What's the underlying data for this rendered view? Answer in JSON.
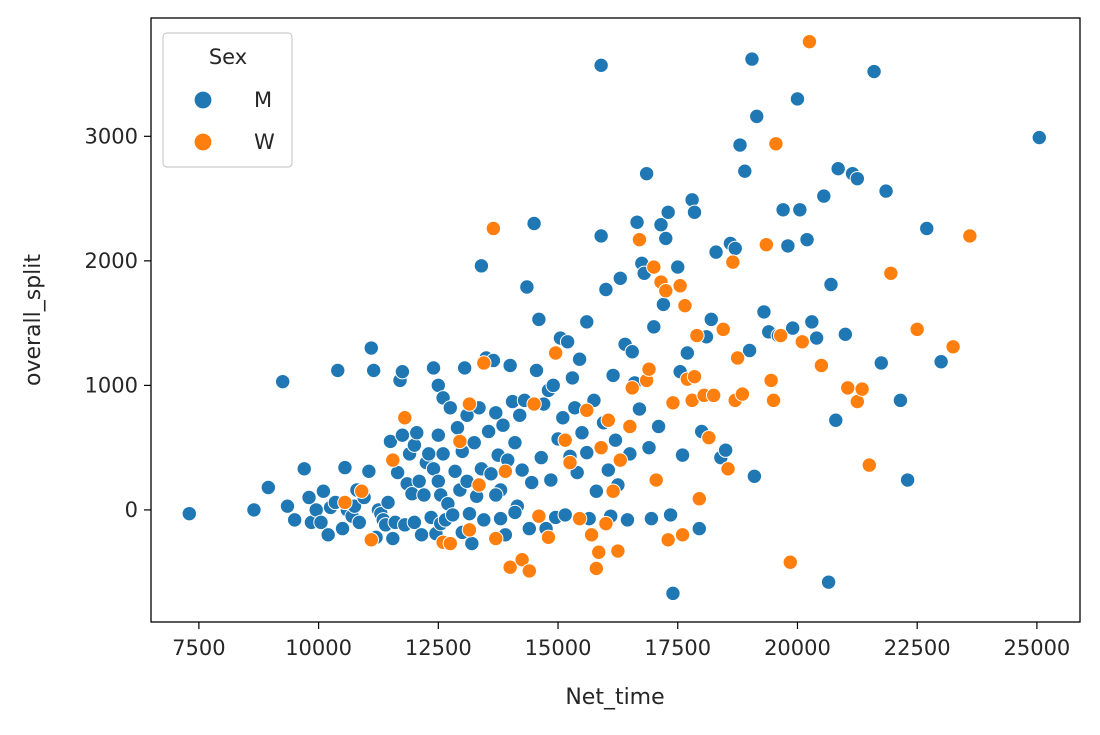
{
  "chart_data": {
    "type": "scatter",
    "title": "",
    "xlabel": "Net_time",
    "ylabel": "overall_split",
    "xlim": [
      6500,
      25900
    ],
    "ylim": [
      -900,
      3950
    ],
    "xticks": [
      "7500",
      "10000",
      "12500",
      "15000",
      "17500",
      "20000",
      "22500",
      "25000"
    ],
    "xtick_values": [
      7500,
      10000,
      12500,
      15000,
      17500,
      20000,
      22500,
      25000
    ],
    "yticks": [
      "0",
      "1000",
      "2000",
      "3000"
    ],
    "ytick_values": [
      0,
      1000,
      2000,
      3000
    ],
    "grid": false,
    "legend": {
      "title": "Sex",
      "position": "top-left"
    },
    "colors": {
      "M": "#1f77b4",
      "W": "#ff7f0e"
    },
    "series": [
      {
        "name": "M",
        "points": [
          [
            7300,
            -30
          ],
          [
            8650,
            0
          ],
          [
            8950,
            180
          ],
          [
            9250,
            1030
          ],
          [
            9350,
            30
          ],
          [
            9500,
            -80
          ],
          [
            9700,
            330
          ],
          [
            9800,
            100
          ],
          [
            9850,
            -100
          ],
          [
            9950,
            0
          ],
          [
            10050,
            -100
          ],
          [
            10100,
            150
          ],
          [
            10200,
            -200
          ],
          [
            10250,
            20
          ],
          [
            10350,
            60
          ],
          [
            10400,
            1120
          ],
          [
            10500,
            -150
          ],
          [
            10550,
            340
          ],
          [
            10600,
            0
          ],
          [
            10700,
            -50
          ],
          [
            10750,
            30
          ],
          [
            10800,
            160
          ],
          [
            10850,
            -100
          ],
          [
            10950,
            100
          ],
          [
            11050,
            310
          ],
          [
            11100,
            1300
          ],
          [
            11150,
            1120
          ],
          [
            11200,
            -220
          ],
          [
            11250,
            0
          ],
          [
            11300,
            -30
          ],
          [
            11350,
            -80
          ],
          [
            11400,
            -120
          ],
          [
            11450,
            60
          ],
          [
            11500,
            550
          ],
          [
            11550,
            -230
          ],
          [
            11600,
            -100
          ],
          [
            11650,
            300
          ],
          [
            11700,
            1040
          ],
          [
            11750,
            1110
          ],
          [
            11750,
            600
          ],
          [
            11800,
            -120
          ],
          [
            11850,
            210
          ],
          [
            11900,
            450
          ],
          [
            11950,
            130
          ],
          [
            12000,
            520
          ],
          [
            12000,
            -100
          ],
          [
            12050,
            620
          ],
          [
            12100,
            230
          ],
          [
            12150,
            -200
          ],
          [
            12200,
            120
          ],
          [
            12250,
            380
          ],
          [
            12300,
            450
          ],
          [
            12350,
            -60
          ],
          [
            12400,
            1140
          ],
          [
            12400,
            330
          ],
          [
            12450,
            -190
          ],
          [
            12500,
            1000
          ],
          [
            12500,
            600
          ],
          [
            12500,
            230
          ],
          [
            12550,
            120
          ],
          [
            12550,
            -110
          ],
          [
            12600,
            900
          ],
          [
            12600,
            450
          ],
          [
            12650,
            -80
          ],
          [
            12700,
            50
          ],
          [
            12750,
            820
          ],
          [
            12800,
            -40
          ],
          [
            12850,
            310
          ],
          [
            12900,
            660
          ],
          [
            12950,
            160
          ],
          [
            13000,
            470
          ],
          [
            13000,
            -180
          ],
          [
            13050,
            1140
          ],
          [
            13100,
            760
          ],
          [
            13100,
            230
          ],
          [
            13150,
            -30
          ],
          [
            13200,
            -270
          ],
          [
            13250,
            540
          ],
          [
            13300,
            110
          ],
          [
            13350,
            820
          ],
          [
            13400,
            1960
          ],
          [
            13400,
            330
          ],
          [
            13450,
            -80
          ],
          [
            13500,
            1220
          ],
          [
            13550,
            630
          ],
          [
            13600,
            290
          ],
          [
            13650,
            1200
          ],
          [
            13700,
            780
          ],
          [
            13750,
            440
          ],
          [
            13800,
            -70
          ],
          [
            13800,
            160
          ],
          [
            13850,
            680
          ],
          [
            13900,
            -200
          ],
          [
            13950,
            400
          ],
          [
            14000,
            1160
          ],
          [
            14050,
            870
          ],
          [
            14100,
            540
          ],
          [
            14150,
            30
          ],
          [
            14200,
            760
          ],
          [
            14250,
            320
          ],
          [
            14300,
            880
          ],
          [
            14350,
            1790
          ],
          [
            14400,
            -150
          ],
          [
            14450,
            220
          ],
          [
            14500,
            2300
          ],
          [
            14550,
            1120
          ],
          [
            14600,
            1530
          ],
          [
            14650,
            420
          ],
          [
            14700,
            850
          ],
          [
            14750,
            -150
          ],
          [
            14800,
            960
          ],
          [
            14850,
            240
          ],
          [
            14900,
            1000
          ],
          [
            14950,
            -60
          ],
          [
            15000,
            570
          ],
          [
            15050,
            1380
          ],
          [
            15100,
            740
          ],
          [
            15150,
            -40
          ],
          [
            15200,
            1350
          ],
          [
            15250,
            430
          ],
          [
            15300,
            1060
          ],
          [
            15350,
            820
          ],
          [
            15400,
            300
          ],
          [
            15450,
            1210
          ],
          [
            15500,
            620
          ],
          [
            15600,
            1510
          ],
          [
            15650,
            -70
          ],
          [
            15750,
            880
          ],
          [
            15800,
            150
          ],
          [
            15900,
            3570
          ],
          [
            15900,
            2200
          ],
          [
            15950,
            700
          ],
          [
            16000,
            1770
          ],
          [
            16050,
            320
          ],
          [
            16100,
            -50
          ],
          [
            16150,
            1080
          ],
          [
            16200,
            560
          ],
          [
            16250,
            200
          ],
          [
            16300,
            1860
          ],
          [
            16400,
            1330
          ],
          [
            16450,
            -80
          ],
          [
            16500,
            450
          ],
          [
            16550,
            1270
          ],
          [
            16600,
            1020
          ],
          [
            16650,
            2310
          ],
          [
            16700,
            810
          ],
          [
            16750,
            1980
          ],
          [
            16800,
            1900
          ],
          [
            16850,
            2700
          ],
          [
            16900,
            500
          ],
          [
            16950,
            -70
          ],
          [
            17000,
            1470
          ],
          [
            17100,
            670
          ],
          [
            17150,
            2290
          ],
          [
            17200,
            1650
          ],
          [
            17250,
            2180
          ],
          [
            17300,
            2390
          ],
          [
            17350,
            -40
          ],
          [
            17400,
            -670
          ],
          [
            17500,
            1950
          ],
          [
            17550,
            1110
          ],
          [
            17600,
            440
          ],
          [
            17700,
            1260
          ],
          [
            17800,
            2490
          ],
          [
            17850,
            2390
          ],
          [
            17950,
            -150
          ],
          [
            18000,
            630
          ],
          [
            18100,
            1390
          ],
          [
            18200,
            1530
          ],
          [
            18300,
            2070
          ],
          [
            18400,
            420
          ],
          [
            18500,
            480
          ],
          [
            18600,
            2140
          ],
          [
            18700,
            2100
          ],
          [
            18800,
            2930
          ],
          [
            18900,
            2720
          ],
          [
            19000,
            1280
          ],
          [
            19050,
            3620
          ],
          [
            19100,
            270
          ],
          [
            19150,
            3160
          ],
          [
            19300,
            1590
          ],
          [
            19400,
            1430
          ],
          [
            19600,
            1400
          ],
          [
            19700,
            2410
          ],
          [
            19800,
            2120
          ],
          [
            19900,
            1460
          ],
          [
            20000,
            3300
          ],
          [
            20050,
            2410
          ],
          [
            20200,
            2170
          ],
          [
            20300,
            1510
          ],
          [
            20400,
            1380
          ],
          [
            20550,
            2520
          ],
          [
            20650,
            -580
          ],
          [
            20700,
            1810
          ],
          [
            20800,
            720
          ],
          [
            20850,
            2740
          ],
          [
            21000,
            1410
          ],
          [
            21150,
            2700
          ],
          [
            21600,
            3520
          ],
          [
            21750,
            1180
          ],
          [
            21850,
            2560
          ],
          [
            22150,
            880
          ],
          [
            22300,
            240
          ],
          [
            22700,
            2260
          ],
          [
            23000,
            1190
          ],
          [
            25050,
            2990
          ],
          [
            21250,
            2660
          ],
          [
            13700,
            120
          ],
          [
            14100,
            -20
          ],
          [
            15600,
            460
          ]
        ]
      },
      {
        "name": "W",
        "points": [
          [
            10550,
            60
          ],
          [
            10900,
            150
          ],
          [
            11100,
            -240
          ],
          [
            11550,
            400
          ],
          [
            11800,
            740
          ],
          [
            12600,
            -260
          ],
          [
            12750,
            -270
          ],
          [
            13150,
            -160
          ],
          [
            13150,
            850
          ],
          [
            13350,
            200
          ],
          [
            13450,
            1180
          ],
          [
            13650,
            2260
          ],
          [
            13700,
            -230
          ],
          [
            13900,
            310
          ],
          [
            14000,
            -460
          ],
          [
            14250,
            -400
          ],
          [
            14400,
            -490
          ],
          [
            14500,
            850
          ],
          [
            14600,
            -50
          ],
          [
            14800,
            -220
          ],
          [
            14950,
            1260
          ],
          [
            15150,
            560
          ],
          [
            15450,
            -70
          ],
          [
            15600,
            800
          ],
          [
            15700,
            -200
          ],
          [
            15800,
            -470
          ],
          [
            15850,
            -340
          ],
          [
            15900,
            500
          ],
          [
            16000,
            -110
          ],
          [
            16050,
            720
          ],
          [
            16250,
            -330
          ],
          [
            16300,
            400
          ],
          [
            16500,
            670
          ],
          [
            16550,
            980
          ],
          [
            16700,
            2170
          ],
          [
            16850,
            1040
          ],
          [
            16900,
            1130
          ],
          [
            17000,
            1950
          ],
          [
            17050,
            240
          ],
          [
            17150,
            1830
          ],
          [
            17250,
            1760
          ],
          [
            17300,
            -240
          ],
          [
            17400,
            860
          ],
          [
            17550,
            1800
          ],
          [
            17600,
            -200
          ],
          [
            17650,
            1640
          ],
          [
            17700,
            1050
          ],
          [
            17800,
            880
          ],
          [
            17850,
            1070
          ],
          [
            17950,
            90
          ],
          [
            18050,
            920
          ],
          [
            18150,
            580
          ],
          [
            18250,
            920
          ],
          [
            18450,
            1450
          ],
          [
            18550,
            330
          ],
          [
            18650,
            1990
          ],
          [
            18700,
            880
          ],
          [
            18750,
            1220
          ],
          [
            18850,
            930
          ],
          [
            19350,
            2130
          ],
          [
            19500,
            880
          ],
          [
            19550,
            2940
          ],
          [
            19650,
            1400
          ],
          [
            19850,
            -420
          ],
          [
            20100,
            1350
          ],
          [
            20250,
            3760
          ],
          [
            20500,
            1160
          ],
          [
            21050,
            980
          ],
          [
            21250,
            870
          ],
          [
            21350,
            970
          ],
          [
            21500,
            360
          ],
          [
            21950,
            1900
          ],
          [
            22500,
            1450
          ],
          [
            23250,
            1310
          ],
          [
            23600,
            2200
          ],
          [
            12950,
            550
          ],
          [
            15250,
            380
          ],
          [
            16150,
            150
          ],
          [
            17900,
            1400
          ],
          [
            19450,
            1040
          ]
        ]
      }
    ]
  }
}
